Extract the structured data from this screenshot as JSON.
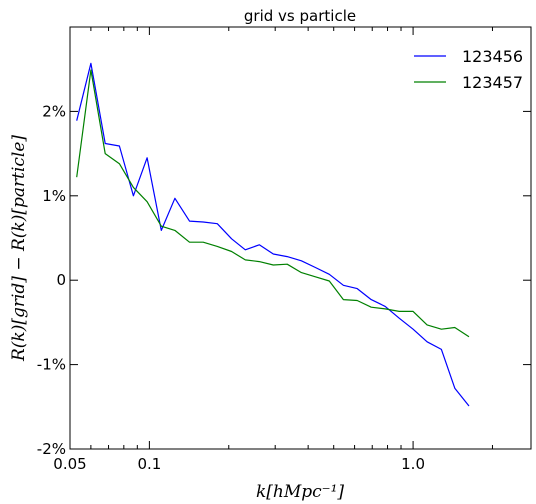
{
  "chart_data": {
    "type": "line",
    "title": "grid vs particle",
    "xlabel": "k[hMpc⁻¹]",
    "ylabel": "R(k)[grid] − R(k)[particle]",
    "xscale": "log",
    "xlim": [
      0.05,
      2.8
    ],
    "ylim": [
      -2,
      3
    ],
    "x_ticks": [
      {
        "value": 0.05,
        "label": "0.05"
      },
      {
        "value": 0.1,
        "label": "0.1"
      },
      {
        "value": 1.0,
        "label": "1.0"
      }
    ],
    "y_ticks": [
      {
        "value": -2,
        "label": "-2%"
      },
      {
        "value": -1,
        "label": "-1%"
      },
      {
        "value": 0,
        "label": "0"
      },
      {
        "value": 1,
        "label": "1%"
      },
      {
        "value": 2,
        "label": "2%"
      }
    ],
    "legend_position": "top-right",
    "series": [
      {
        "name": "123456",
        "color": "#0000ff",
        "points": [
          [
            0.053,
            1.89
          ],
          [
            0.06,
            2.57
          ],
          [
            0.068,
            1.62
          ],
          [
            0.077,
            1.59
          ],
          [
            0.087,
            1.0
          ],
          [
            0.098,
            1.45
          ],
          [
            0.111,
            0.59
          ],
          [
            0.125,
            0.97
          ],
          [
            0.142,
            0.7
          ],
          [
            0.16,
            0.69
          ],
          [
            0.181,
            0.67
          ],
          [
            0.205,
            0.49
          ],
          [
            0.231,
            0.36
          ],
          [
            0.261,
            0.42
          ],
          [
            0.295,
            0.31
          ],
          [
            0.333,
            0.28
          ],
          [
            0.377,
            0.23
          ],
          [
            0.426,
            0.15
          ],
          [
            0.481,
            0.07
          ],
          [
            0.544,
            -0.06
          ],
          [
            0.614,
            -0.1
          ],
          [
            0.694,
            -0.23
          ],
          [
            0.784,
            -0.31
          ],
          [
            0.886,
            -0.45
          ],
          [
            1.0,
            -0.58
          ],
          [
            1.13,
            -0.73
          ],
          [
            1.28,
            -0.82
          ],
          [
            1.44,
            -1.28
          ],
          [
            1.63,
            -1.49
          ]
        ]
      },
      {
        "name": "123457",
        "color": "#008000",
        "points": [
          [
            0.053,
            1.22
          ],
          [
            0.06,
            2.49
          ],
          [
            0.068,
            1.5
          ],
          [
            0.077,
            1.38
          ],
          [
            0.087,
            1.1
          ],
          [
            0.098,
            0.93
          ],
          [
            0.111,
            0.64
          ],
          [
            0.125,
            0.59
          ],
          [
            0.142,
            0.45
          ],
          [
            0.16,
            0.45
          ],
          [
            0.181,
            0.4
          ],
          [
            0.205,
            0.34
          ],
          [
            0.231,
            0.24
          ],
          [
            0.261,
            0.22
          ],
          [
            0.295,
            0.18
          ],
          [
            0.333,
            0.19
          ],
          [
            0.377,
            0.09
          ],
          [
            0.426,
            0.04
          ],
          [
            0.481,
            -0.01
          ],
          [
            0.544,
            -0.23
          ],
          [
            0.614,
            -0.24
          ],
          [
            0.694,
            -0.32
          ],
          [
            0.784,
            -0.34
          ],
          [
            0.886,
            -0.37
          ],
          [
            1.0,
            -0.37
          ],
          [
            1.13,
            -0.53
          ],
          [
            1.28,
            -0.58
          ],
          [
            1.44,
            -0.56
          ],
          [
            1.63,
            -0.67
          ]
        ]
      }
    ]
  }
}
